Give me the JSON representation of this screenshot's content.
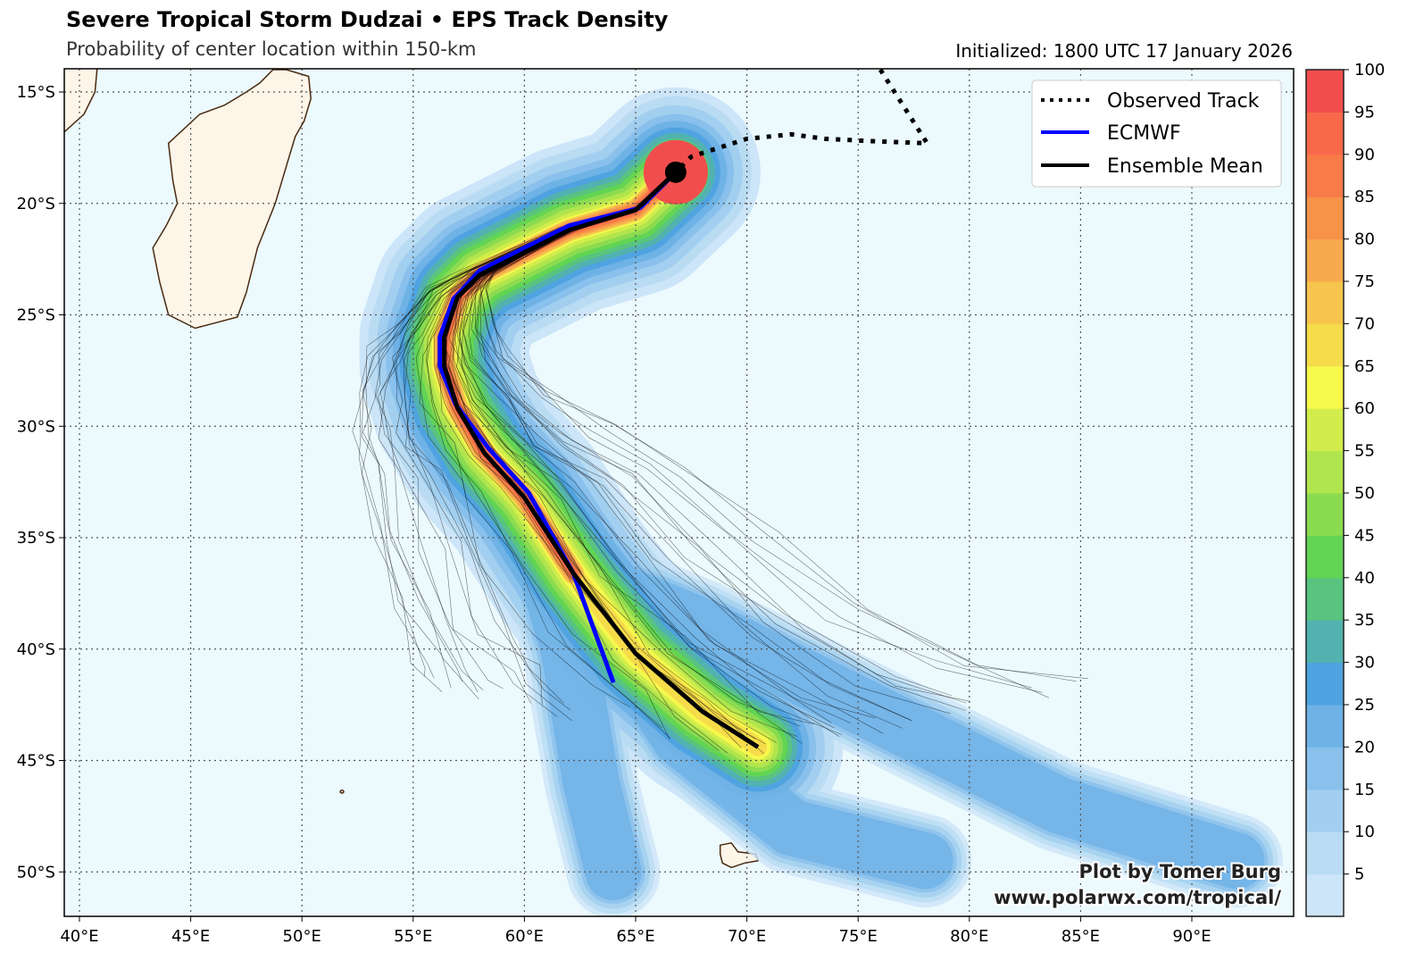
{
  "header": {
    "title": "Severe Tropical Storm Dudzai • EPS Track Density",
    "subtitle": "Probability of center location within 150-km",
    "initialized": "Initialized: 1800 UTC 17 January 2026"
  },
  "legend": [
    {
      "label": "Observed Track",
      "style": "dotted",
      "color": "#000000"
    },
    {
      "label": "ECMWF",
      "style": "solid",
      "color": "#0000ff"
    },
    {
      "label": "Ensemble Mean",
      "style": "solid",
      "color": "#000000"
    }
  ],
  "credit": {
    "line1": "Plot by Tomer Burg",
    "line2": "www.polarwx.com/tropical/"
  },
  "map": {
    "lon_range": [
      39.3,
      94.6
    ],
    "lat_range": [
      -52,
      -14
    ],
    "ocean_color": "#ecfafe",
    "land_color": "#fcf5e8",
    "lon_ticks": [
      "40°E",
      "45°E",
      "50°E",
      "55°E",
      "60°E",
      "65°E",
      "70°E",
      "75°E",
      "80°E",
      "85°E",
      "90°E"
    ],
    "lat_ticks": [
      "15°S",
      "20°S",
      "25°S",
      "30°S",
      "35°S",
      "40°S",
      "45°S",
      "50°S"
    ]
  },
  "colorbar": {
    "ticks": [
      "5",
      "10",
      "15",
      "20",
      "25",
      "30",
      "35",
      "40",
      "45",
      "50",
      "55",
      "60",
      "65",
      "70",
      "75",
      "80",
      "85",
      "90",
      "95",
      "100"
    ],
    "colors": [
      "#cde5f8",
      "#b9dcf3",
      "#a2cfef",
      "#89c0ec",
      "#6eb2e6",
      "#4fa3e0",
      "#52b2b0",
      "#58c47f",
      "#62d454",
      "#8bdb50",
      "#b1e54d",
      "#d2ed4b",
      "#f6f84c",
      "#f6dc4a",
      "#f7c54d",
      "#f6aa4d",
      "#f79249",
      "#f97b48",
      "#f8694a",
      "#f24d4d"
    ]
  },
  "chart_data": {
    "type": "map-track-density",
    "initial_position": [
      66.8,
      -18.6
    ],
    "observed_track": [
      [
        76.0,
        -14.0
      ],
      [
        78.1,
        -17.3
      ],
      [
        75.5,
        -17.2
      ],
      [
        73.5,
        -17.1
      ],
      [
        72.0,
        -16.9
      ],
      [
        70.0,
        -17.1
      ],
      [
        67.5,
        -17.9
      ],
      [
        66.8,
        -18.6
      ]
    ],
    "ensemble_mean": [
      [
        66.8,
        -18.6
      ],
      [
        65.0,
        -20.3
      ],
      [
        62.0,
        -21.2
      ],
      [
        58.0,
        -23.2
      ],
      [
        57.0,
        -24.2
      ],
      [
        56.4,
        -26.0
      ],
      [
        56.4,
        -27.3
      ],
      [
        57.0,
        -29.2
      ],
      [
        58.2,
        -31.2
      ],
      [
        60.0,
        -33.2
      ],
      [
        62.2,
        -36.6
      ],
      [
        65.0,
        -40.2
      ],
      [
        68.0,
        -42.8
      ],
      [
        70.5,
        -44.4
      ]
    ],
    "ecmwf": [
      [
        66.8,
        -18.6
      ],
      [
        65.2,
        -20.2
      ],
      [
        62.0,
        -21.0
      ],
      [
        58.0,
        -23.0
      ],
      [
        56.8,
        -24.3
      ],
      [
        56.2,
        -26.0
      ],
      [
        56.2,
        -27.3
      ],
      [
        56.9,
        -29.0
      ],
      [
        58.4,
        -31.0
      ],
      [
        60.2,
        -33.0
      ],
      [
        62.2,
        -36.6
      ],
      [
        64.0,
        -41.5
      ]
    ]
  }
}
